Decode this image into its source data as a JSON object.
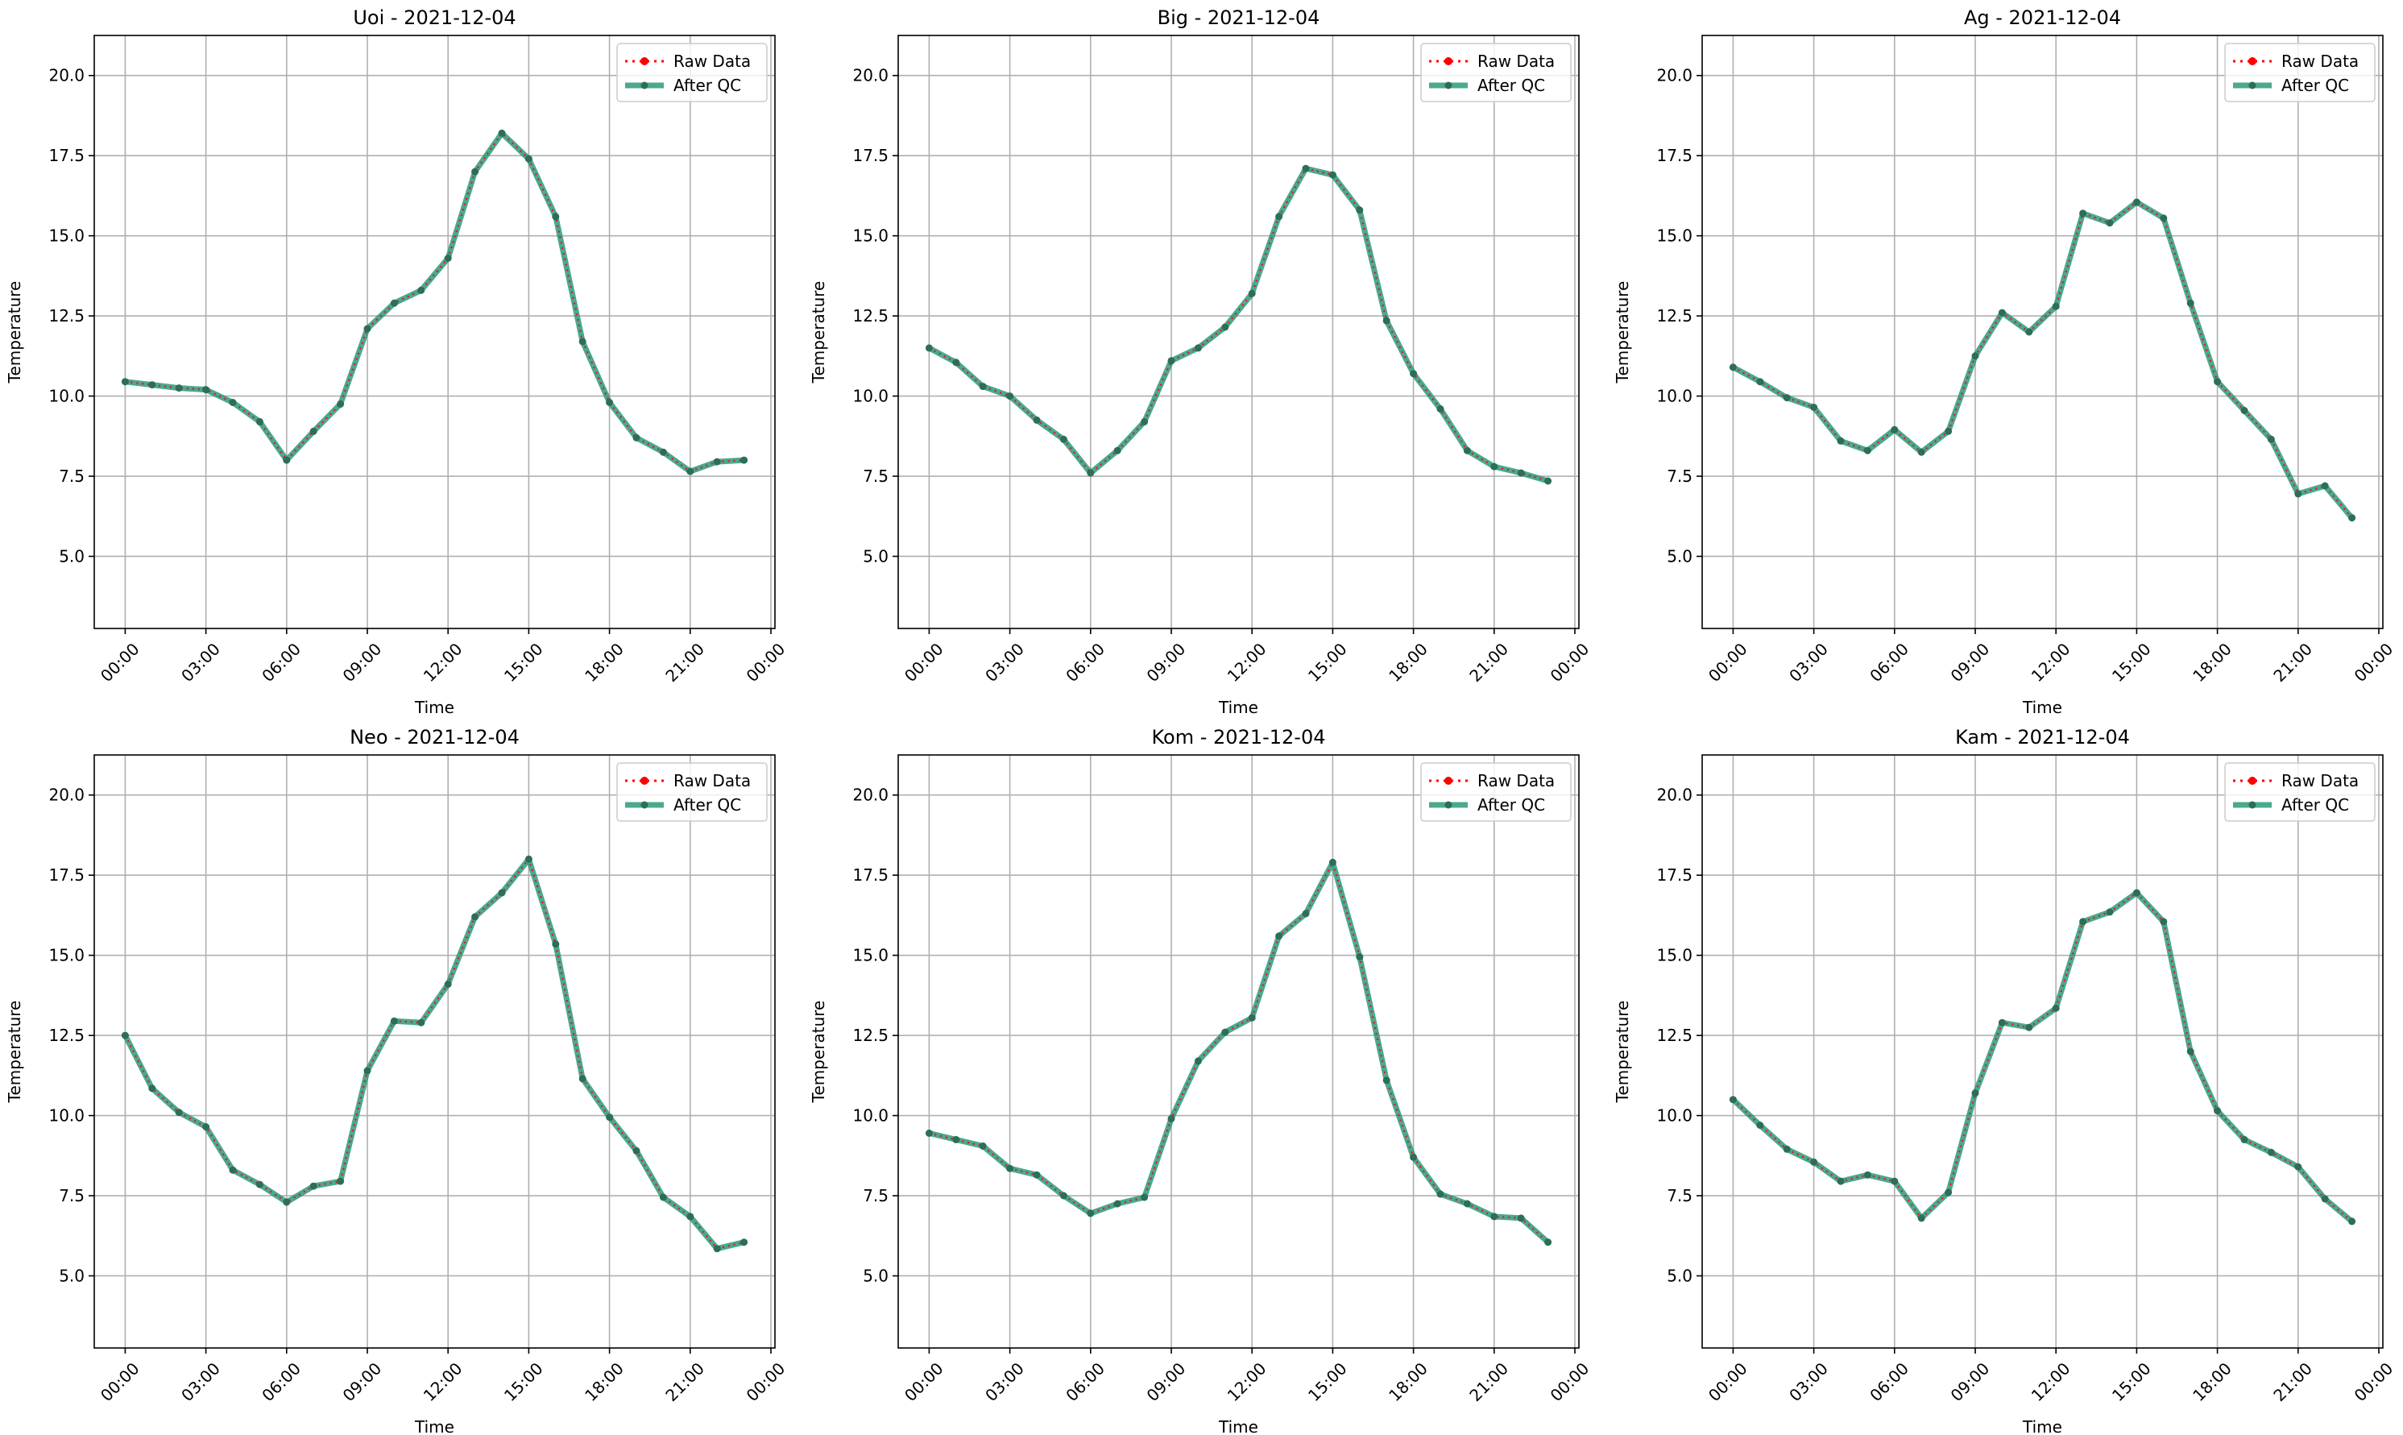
{
  "chart_data": [
    {
      "type": "line",
      "title": "Uoi - 2021-12-04",
      "xlabel": "Time",
      "ylabel": "Temperature",
      "xlim": [
        -1.15,
        24.15
      ],
      "ylim": [
        2.75,
        21.25
      ],
      "x_ticks": [
        0,
        3,
        6,
        9,
        12,
        15,
        18,
        21,
        24
      ],
      "x_tick_labels": [
        "00:00",
        "03:00",
        "06:00",
        "09:00",
        "12:00",
        "15:00",
        "18:00",
        "21:00",
        "00:00"
      ],
      "y_ticks": [
        5.0,
        7.5,
        10.0,
        12.5,
        15.0,
        17.5,
        20.0
      ],
      "y_tick_labels": [
        "5.0",
        "7.5",
        "10.0",
        "12.5",
        "15.0",
        "17.5",
        "20.0"
      ],
      "grid": true,
      "legend": "top-right",
      "x": [
        0,
        1,
        2,
        3,
        4,
        5,
        6,
        7,
        8,
        9,
        10,
        11,
        12,
        13,
        14,
        15,
        16,
        17,
        18,
        19,
        20,
        21,
        22,
        23
      ],
      "series": [
        {
          "name": "Raw Data",
          "values": [
            10.45,
            10.35,
            10.25,
            10.2,
            9.8,
            9.2,
            8.0,
            8.9,
            9.75,
            12.1,
            12.9,
            13.3,
            14.3,
            17.0,
            18.2,
            17.4,
            15.6,
            11.7,
            9.8,
            8.7,
            8.25,
            7.65,
            7.95,
            8.0
          ]
        },
        {
          "name": "After QC",
          "values": [
            10.45,
            10.35,
            10.25,
            10.2,
            9.8,
            9.2,
            8.0,
            8.9,
            9.75,
            12.1,
            12.9,
            13.3,
            14.3,
            17.0,
            18.2,
            17.4,
            15.6,
            11.7,
            9.8,
            8.7,
            8.25,
            7.65,
            7.95,
            8.0
          ]
        }
      ]
    },
    {
      "type": "line",
      "title": "Big - 2021-12-04",
      "xlabel": "Time",
      "ylabel": "Temperature",
      "xlim": [
        -1.15,
        24.15
      ],
      "ylim": [
        2.75,
        21.25
      ],
      "x_ticks": [
        0,
        3,
        6,
        9,
        12,
        15,
        18,
        21,
        24
      ],
      "x_tick_labels": [
        "00:00",
        "03:00",
        "06:00",
        "09:00",
        "12:00",
        "15:00",
        "18:00",
        "21:00",
        "00:00"
      ],
      "y_ticks": [
        5.0,
        7.5,
        10.0,
        12.5,
        15.0,
        17.5,
        20.0
      ],
      "y_tick_labels": [
        "5.0",
        "7.5",
        "10.0",
        "12.5",
        "15.0",
        "17.5",
        "20.0"
      ],
      "grid": true,
      "legend": "top-right",
      "x": [
        0,
        1,
        2,
        3,
        4,
        5,
        6,
        7,
        8,
        9,
        10,
        11,
        12,
        13,
        14,
        15,
        16,
        17,
        18,
        19,
        20,
        21,
        22,
        23
      ],
      "series": [
        {
          "name": "Raw Data",
          "values": [
            11.5,
            11.05,
            10.3,
            10.0,
            9.25,
            8.65,
            7.6,
            8.3,
            9.2,
            11.1,
            11.5,
            12.15,
            13.2,
            15.6,
            17.1,
            16.9,
            15.8,
            12.35,
            10.7,
            9.6,
            8.3,
            7.8,
            7.6,
            7.35
          ]
        },
        {
          "name": "After QC",
          "values": [
            11.5,
            11.05,
            10.3,
            10.0,
            9.25,
            8.65,
            7.6,
            8.3,
            9.2,
            11.1,
            11.5,
            12.15,
            13.2,
            15.6,
            17.1,
            16.9,
            15.8,
            12.35,
            10.7,
            9.6,
            8.3,
            7.8,
            7.6,
            7.35
          ]
        }
      ]
    },
    {
      "type": "line",
      "title": "Ag - 2021-12-04",
      "xlabel": "Time",
      "ylabel": "Temperature",
      "xlim": [
        -1.15,
        24.15
      ],
      "ylim": [
        2.75,
        21.25
      ],
      "x_ticks": [
        0,
        3,
        6,
        9,
        12,
        15,
        18,
        21,
        24
      ],
      "x_tick_labels": [
        "00:00",
        "03:00",
        "06:00",
        "09:00",
        "12:00",
        "15:00",
        "18:00",
        "21:00",
        "00:00"
      ],
      "y_ticks": [
        5.0,
        7.5,
        10.0,
        12.5,
        15.0,
        17.5,
        20.0
      ],
      "y_tick_labels": [
        "5.0",
        "7.5",
        "10.0",
        "12.5",
        "15.0",
        "17.5",
        "20.0"
      ],
      "grid": true,
      "legend": "top-right",
      "x": [
        0,
        1,
        2,
        3,
        4,
        5,
        6,
        7,
        8,
        9,
        10,
        11,
        12,
        13,
        14,
        15,
        16,
        17,
        18,
        19,
        20,
        21,
        22,
        23
      ],
      "series": [
        {
          "name": "Raw Data",
          "values": [
            10.9,
            10.45,
            9.95,
            9.65,
            8.6,
            8.3,
            8.95,
            8.25,
            8.9,
            11.25,
            12.6,
            12.0,
            12.8,
            15.7,
            15.4,
            16.05,
            15.55,
            12.9,
            10.45,
            9.55,
            8.65,
            6.95,
            7.2,
            6.2
          ]
        },
        {
          "name": "After QC",
          "values": [
            10.9,
            10.45,
            9.95,
            9.65,
            8.6,
            8.3,
            8.95,
            8.25,
            8.9,
            11.25,
            12.6,
            12.0,
            12.8,
            15.7,
            15.4,
            16.05,
            15.55,
            12.9,
            10.45,
            9.55,
            8.65,
            6.95,
            7.2,
            6.2
          ]
        }
      ]
    },
    {
      "type": "line",
      "title": "Neo - 2021-12-04",
      "xlabel": "Time",
      "ylabel": "Temperature",
      "xlim": [
        -1.15,
        24.15
      ],
      "ylim": [
        2.75,
        21.25
      ],
      "x_ticks": [
        0,
        3,
        6,
        9,
        12,
        15,
        18,
        21,
        24
      ],
      "x_tick_labels": [
        "00:00",
        "03:00",
        "06:00",
        "09:00",
        "12:00",
        "15:00",
        "18:00",
        "21:00",
        "00:00"
      ],
      "y_ticks": [
        5.0,
        7.5,
        10.0,
        12.5,
        15.0,
        17.5,
        20.0
      ],
      "y_tick_labels": [
        "5.0",
        "7.5",
        "10.0",
        "12.5",
        "15.0",
        "17.5",
        "20.0"
      ],
      "grid": true,
      "legend": "top-right",
      "x": [
        0,
        1,
        2,
        3,
        4,
        5,
        6,
        7,
        8,
        9,
        10,
        11,
        12,
        13,
        14,
        15,
        16,
        17,
        18,
        19,
        20,
        21,
        22,
        23
      ],
      "series": [
        {
          "name": "Raw Data",
          "values": [
            12.5,
            10.85,
            10.1,
            9.65,
            8.3,
            7.85,
            7.3,
            7.8,
            7.95,
            11.4,
            12.95,
            12.9,
            14.1,
            16.2,
            16.95,
            18.0,
            15.35,
            11.15,
            9.95,
            8.9,
            7.45,
            6.85,
            5.85,
            6.05
          ]
        },
        {
          "name": "After QC",
          "values": [
            12.5,
            10.85,
            10.1,
            9.65,
            8.3,
            7.85,
            7.3,
            7.8,
            7.95,
            11.4,
            12.95,
            12.9,
            14.1,
            16.2,
            16.95,
            18.0,
            15.35,
            11.15,
            9.95,
            8.9,
            7.45,
            6.85,
            5.85,
            6.05
          ]
        }
      ]
    },
    {
      "type": "line",
      "title": "Kom - 2021-12-04",
      "xlabel": "Time",
      "ylabel": "Temperature",
      "xlim": [
        -1.15,
        24.15
      ],
      "ylim": [
        2.75,
        21.25
      ],
      "x_ticks": [
        0,
        3,
        6,
        9,
        12,
        15,
        18,
        21,
        24
      ],
      "x_tick_labels": [
        "00:00",
        "03:00",
        "06:00",
        "09:00",
        "12:00",
        "15:00",
        "18:00",
        "21:00",
        "00:00"
      ],
      "y_ticks": [
        5.0,
        7.5,
        10.0,
        12.5,
        15.0,
        17.5,
        20.0
      ],
      "y_tick_labels": [
        "5.0",
        "7.5",
        "10.0",
        "12.5",
        "15.0",
        "17.5",
        "20.0"
      ],
      "grid": true,
      "legend": "top-right",
      "x": [
        0,
        1,
        2,
        3,
        4,
        5,
        6,
        7,
        8,
        9,
        10,
        11,
        12,
        13,
        14,
        15,
        16,
        17,
        18,
        19,
        20,
        21,
        22,
        23
      ],
      "series": [
        {
          "name": "Raw Data",
          "values": [
            9.45,
            9.25,
            9.05,
            8.35,
            8.15,
            7.5,
            6.95,
            7.25,
            7.45,
            9.9,
            11.7,
            12.6,
            13.05,
            15.6,
            16.3,
            17.9,
            14.95,
            11.1,
            8.7,
            7.55,
            7.25,
            6.85,
            6.8,
            6.05
          ]
        },
        {
          "name": "After QC",
          "values": [
            9.45,
            9.25,
            9.05,
            8.35,
            8.15,
            7.5,
            6.95,
            7.25,
            7.45,
            9.9,
            11.7,
            12.6,
            13.05,
            15.6,
            16.3,
            17.9,
            14.95,
            11.1,
            8.7,
            7.55,
            7.25,
            6.85,
            6.8,
            6.05
          ]
        }
      ]
    },
    {
      "type": "line",
      "title": "Kam - 2021-12-04",
      "xlabel": "Time",
      "ylabel": "Temperature",
      "xlim": [
        -1.15,
        24.15
      ],
      "ylim": [
        2.75,
        21.25
      ],
      "x_ticks": [
        0,
        3,
        6,
        9,
        12,
        15,
        18,
        21,
        24
      ],
      "x_tick_labels": [
        "00:00",
        "03:00",
        "06:00",
        "09:00",
        "12:00",
        "15:00",
        "18:00",
        "21:00",
        "00:00"
      ],
      "y_ticks": [
        5.0,
        7.5,
        10.0,
        12.5,
        15.0,
        17.5,
        20.0
      ],
      "y_tick_labels": [
        "5.0",
        "7.5",
        "10.0",
        "12.5",
        "15.0",
        "17.5",
        "20.0"
      ],
      "grid": true,
      "legend": "top-right",
      "x": [
        0,
        1,
        2,
        3,
        4,
        5,
        6,
        7,
        8,
        9,
        10,
        11,
        12,
        13,
        14,
        15,
        16,
        17,
        18,
        19,
        20,
        21,
        22,
        23
      ],
      "series": [
        {
          "name": "Raw Data",
          "values": [
            10.5,
            9.7,
            8.95,
            8.55,
            7.95,
            8.15,
            7.95,
            6.8,
            7.6,
            10.7,
            12.9,
            12.75,
            13.35,
            16.05,
            16.35,
            16.95,
            16.05,
            12.0,
            10.15,
            9.25,
            8.85,
            8.4,
            7.4,
            6.7
          ]
        },
        {
          "name": "After QC",
          "values": [
            10.5,
            9.7,
            8.95,
            8.55,
            7.95,
            8.15,
            7.95,
            6.8,
            7.6,
            10.7,
            12.9,
            12.75,
            13.35,
            16.05,
            16.35,
            16.95,
            16.05,
            12.0,
            10.15,
            9.25,
            8.85,
            8.4,
            7.4,
            6.7
          ]
        }
      ]
    }
  ],
  "series_colors": {
    "raw": "#ff0000",
    "qc": "#2a9a7a",
    "marker": "#2d6e57"
  }
}
